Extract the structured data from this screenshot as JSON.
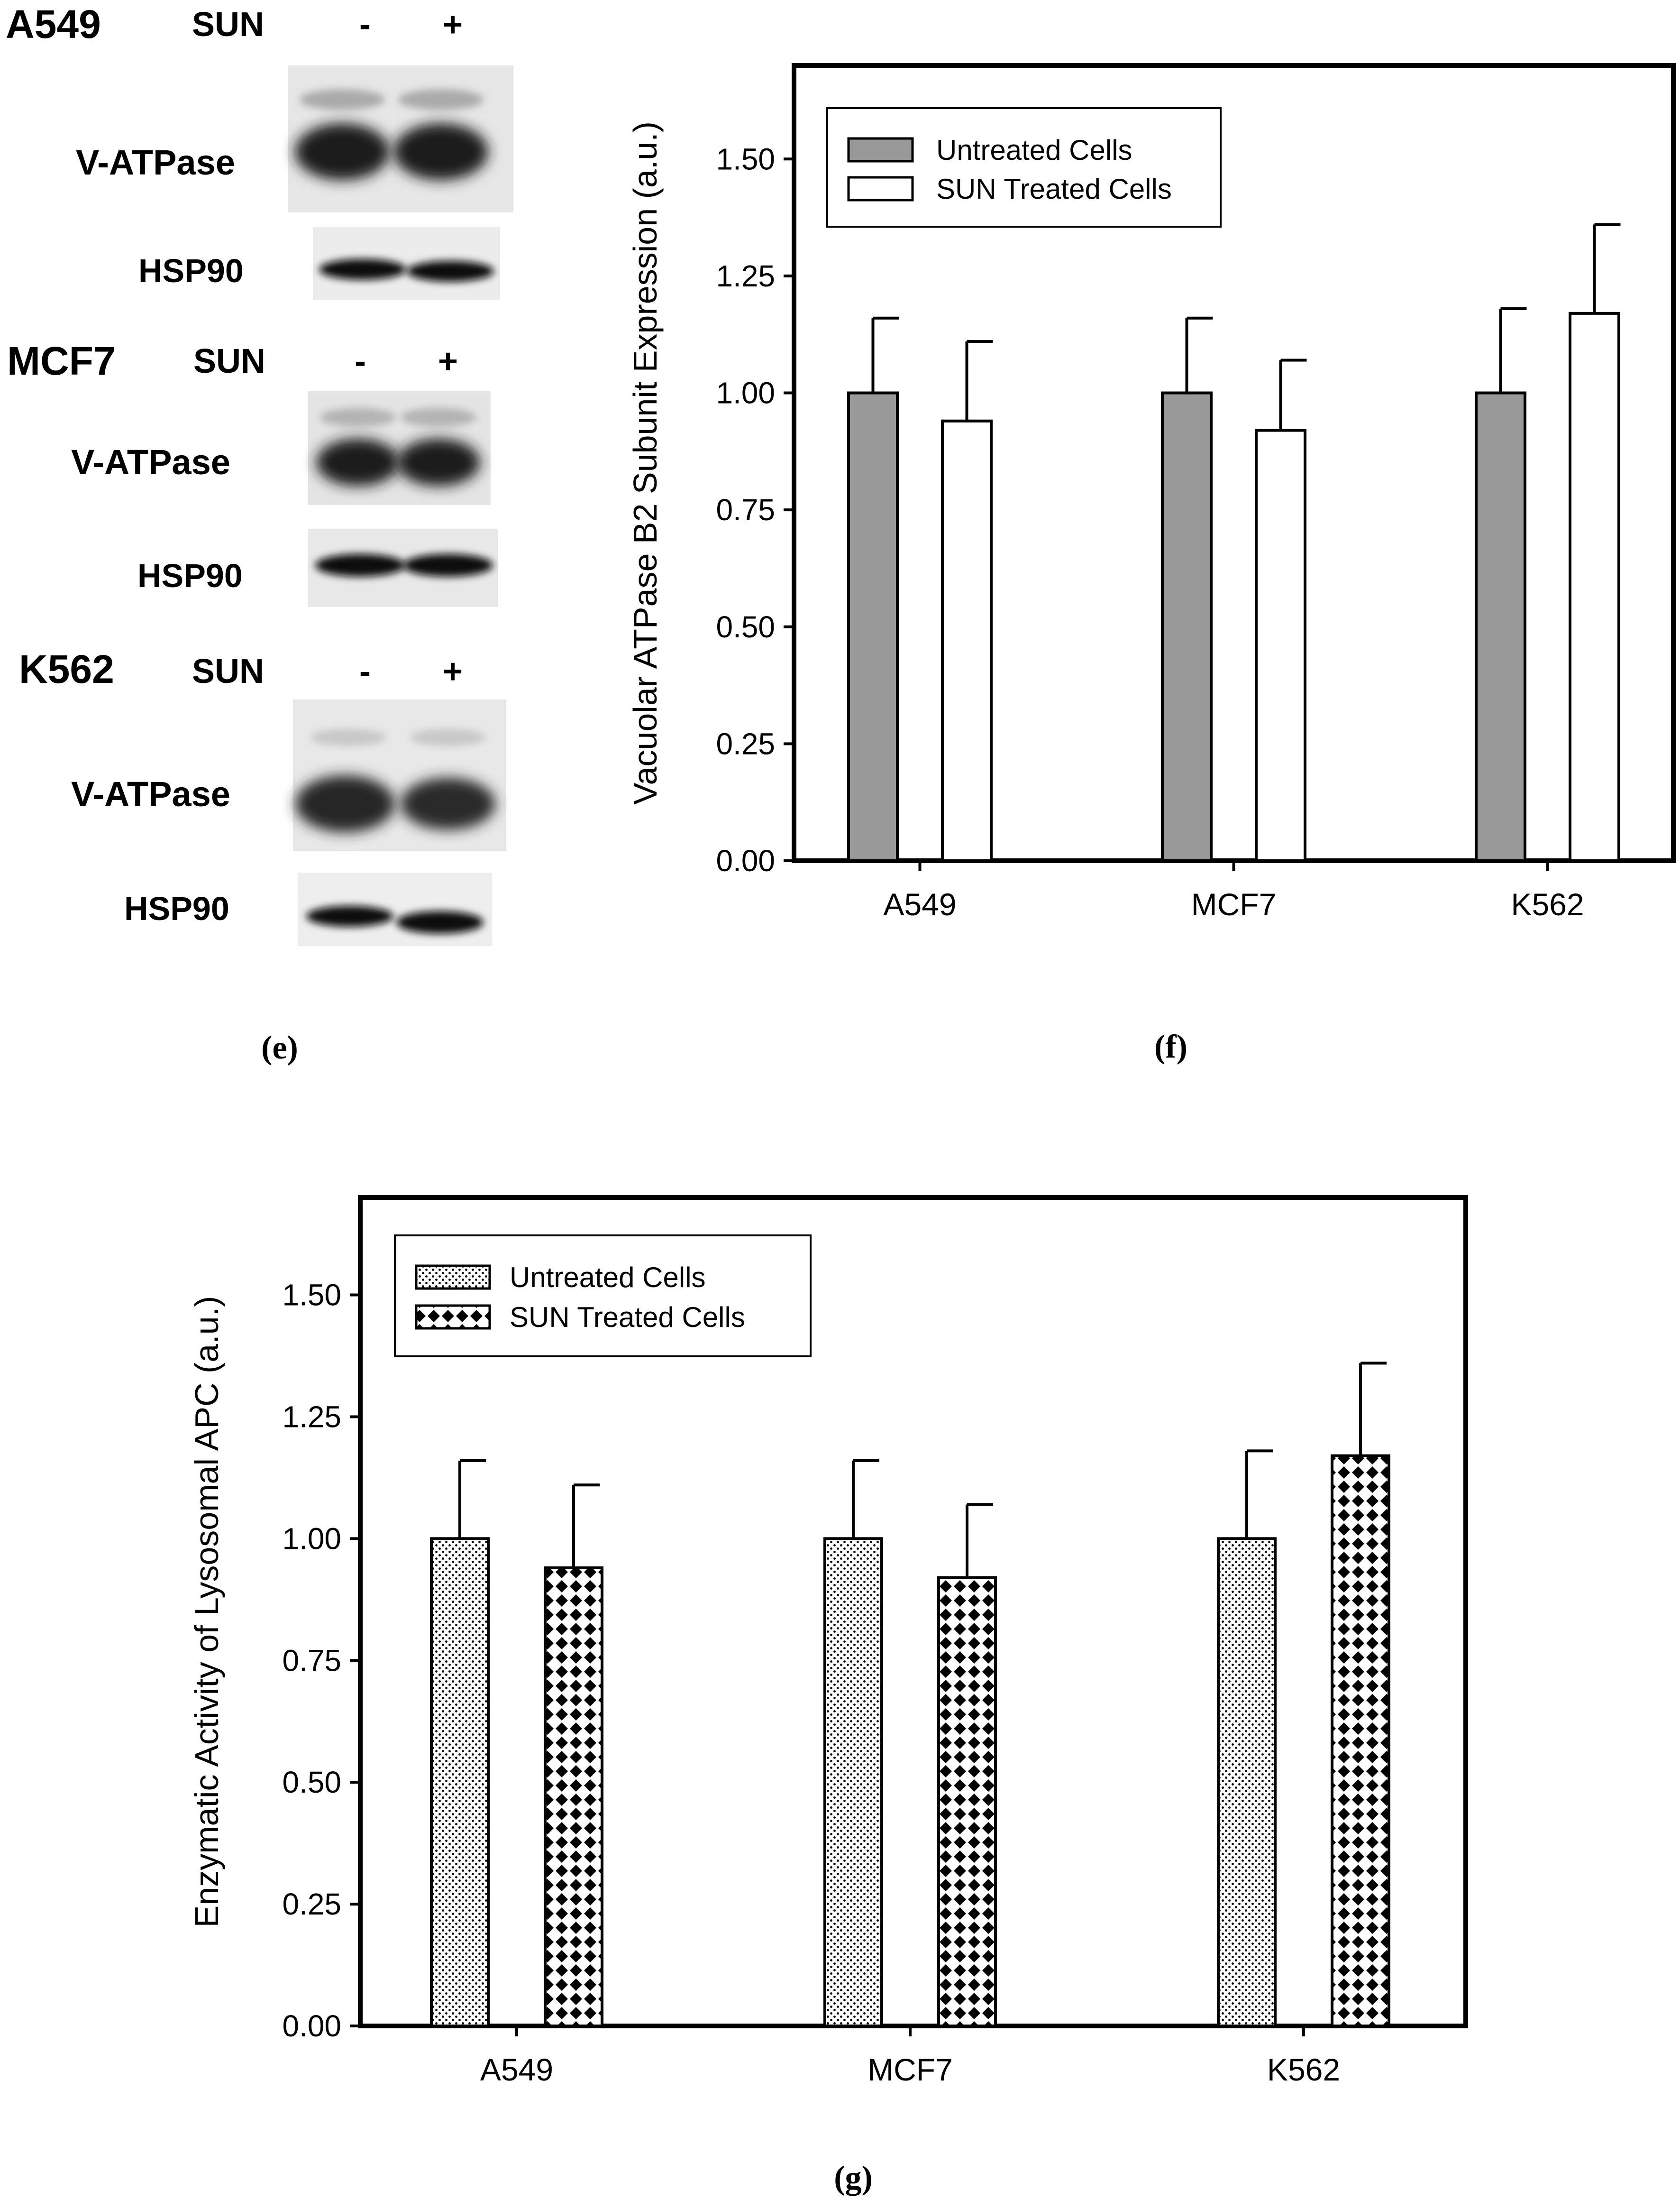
{
  "western_blot": {
    "panel_label": "e",
    "groups": [
      {
        "cell_line": "A549",
        "treatment": "SUN",
        "lanes": [
          "-",
          "+"
        ],
        "rows": [
          {
            "label": "V-ATPase"
          },
          {
            "label": "HSP90"
          }
        ]
      },
      {
        "cell_line": "MCF7",
        "treatment": "SUN",
        "lanes": [
          "-",
          "+"
        ],
        "rows": [
          {
            "label": "V-ATPase"
          },
          {
            "label": "HSP90"
          }
        ]
      },
      {
        "cell_line": "K562",
        "treatment": "SUN",
        "lanes": [
          "-",
          "+"
        ],
        "rows": [
          {
            "label": "V-ATPase"
          },
          {
            "label": "HSP90"
          }
        ]
      }
    ]
  },
  "chart_data": [
    {
      "panel_label": "f",
      "type": "bar",
      "categories": [
        "A549",
        "MCF7",
        "K562"
      ],
      "series": [
        {
          "name": "Untreated Cells",
          "values": [
            1.0,
            1.0,
            1.0
          ],
          "errors": [
            0.16,
            0.16,
            0.18
          ],
          "fill": "#999999"
        },
        {
          "name": "SUN Treated Cells",
          "values": [
            0.94,
            0.92,
            1.17
          ],
          "errors": [
            0.17,
            0.15,
            0.19
          ],
          "fill": "#ffffff"
        }
      ],
      "ylabel": "Vacuolar ATPase B2 Subunit Expression (a.u.)",
      "xlabel": "",
      "ylim": [
        0,
        1.7
      ],
      "yticks": [
        "0.00",
        "0.25",
        "0.50",
        "0.75",
        "1.00",
        "1.25",
        "1.50"
      ],
      "legend": "top-left"
    },
    {
      "panel_label": "g",
      "type": "bar",
      "categories": [
        "A549",
        "MCF7",
        "K562"
      ],
      "series": [
        {
          "name": "Untreated Cells",
          "values": [
            1.0,
            1.0,
            1.0
          ],
          "errors": [
            0.16,
            0.16,
            0.18
          ],
          "fill": "dots"
        },
        {
          "name": "SUN Treated Cells",
          "values": [
            0.94,
            0.92,
            1.17
          ],
          "errors": [
            0.17,
            0.15,
            0.19
          ],
          "fill": "diamonds"
        }
      ],
      "ylabel": "Enzymatic Activity of Lysosomal APC (a.u.)",
      "xlabel": "",
      "ylim": [
        0,
        1.7
      ],
      "yticks": [
        "0.00",
        "0.25",
        "0.50",
        "0.75",
        "1.00",
        "1.25",
        "1.50"
      ],
      "legend": "top-left"
    }
  ]
}
